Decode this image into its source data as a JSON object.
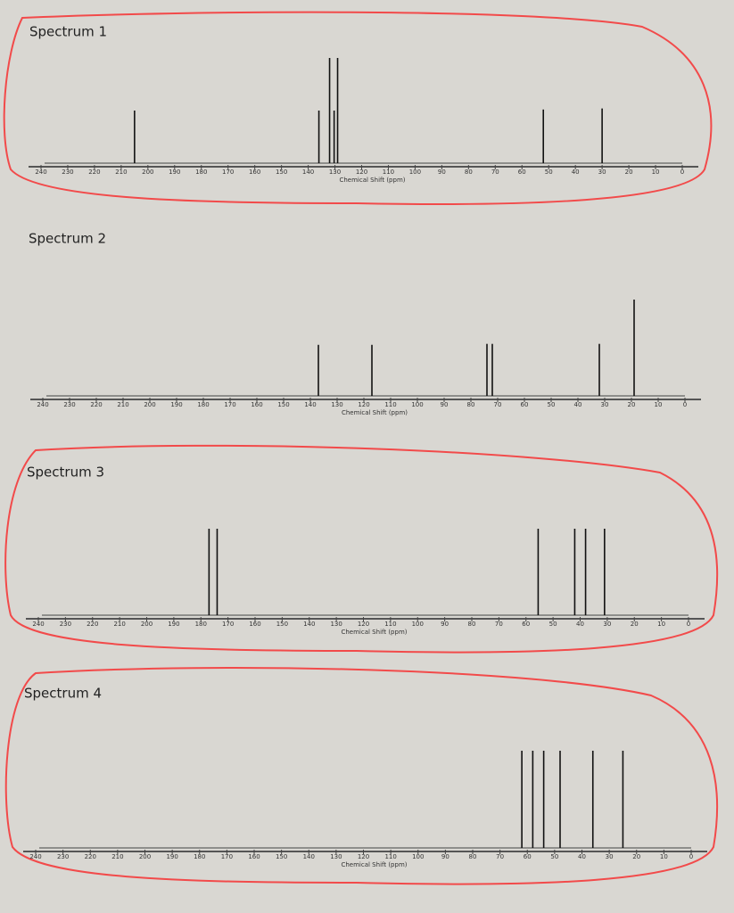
{
  "chart_data": [
    {
      "type": "spectrum",
      "title": "Spectrum 1",
      "xlabel": "Chemical Shift (ppm)",
      "color": "#111111",
      "xlim": [
        240,
        0
      ],
      "xticks": [
        240,
        230,
        220,
        210,
        200,
        190,
        180,
        170,
        160,
        150,
        140,
        130,
        120,
        110,
        100,
        90,
        80,
        70,
        60,
        50,
        40,
        30,
        20,
        10,
        0
      ],
      "ylim": [
        0,
        100
      ],
      "x": [
        205,
        136,
        132,
        130.3,
        129,
        52,
        30
      ],
      "values": [
        50,
        50,
        100,
        50,
        100,
        51,
        52
      ]
    },
    {
      "type": "spectrum",
      "title": "Spectrum 2",
      "xlabel": "Chemical Shift (ppm)",
      "color": "#111111",
      "xlim": [
        240,
        0
      ],
      "xticks": [
        240,
        230,
        220,
        210,
        200,
        190,
        180,
        170,
        160,
        150,
        140,
        130,
        120,
        110,
        100,
        90,
        80,
        70,
        60,
        50,
        40,
        30,
        20,
        10,
        0
      ],
      "ylim": [
        0,
        100
      ],
      "x": [
        137,
        117,
        74,
        72,
        32,
        19
      ],
      "values": [
        53,
        53,
        54,
        54,
        54,
        100
      ]
    },
    {
      "type": "spectrum",
      "title": "Spectrum 3",
      "xlabel": "Chemical Shift (ppm)",
      "color": "#111111",
      "xlim": [
        240,
        0
      ],
      "xticks": [
        240,
        230,
        220,
        210,
        200,
        190,
        180,
        170,
        160,
        150,
        140,
        130,
        120,
        110,
        100,
        90,
        80,
        70,
        60,
        50,
        40,
        30,
        20,
        10,
        0
      ],
      "ylim": [
        0,
        100
      ],
      "x": [
        177,
        174,
        55.5,
        42,
        38,
        31
      ],
      "values": [
        100,
        100,
        100,
        100,
        100,
        100
      ]
    },
    {
      "type": "spectrum",
      "title": "Spectrum 4",
      "xlabel": "Chemical Shift (ppm)",
      "color": "#111111",
      "xlim": [
        240,
        0
      ],
      "xticks": [
        240,
        230,
        220,
        210,
        200,
        190,
        180,
        170,
        160,
        150,
        140,
        130,
        120,
        110,
        100,
        90,
        80,
        70,
        60,
        50,
        40,
        30,
        20,
        10,
        0
      ],
      "ylim": [
        0,
        100
      ],
      "x": [
        62,
        58,
        54,
        48,
        36,
        25
      ],
      "values": [
        100,
        100,
        100,
        100,
        100,
        100
      ]
    }
  ]
}
